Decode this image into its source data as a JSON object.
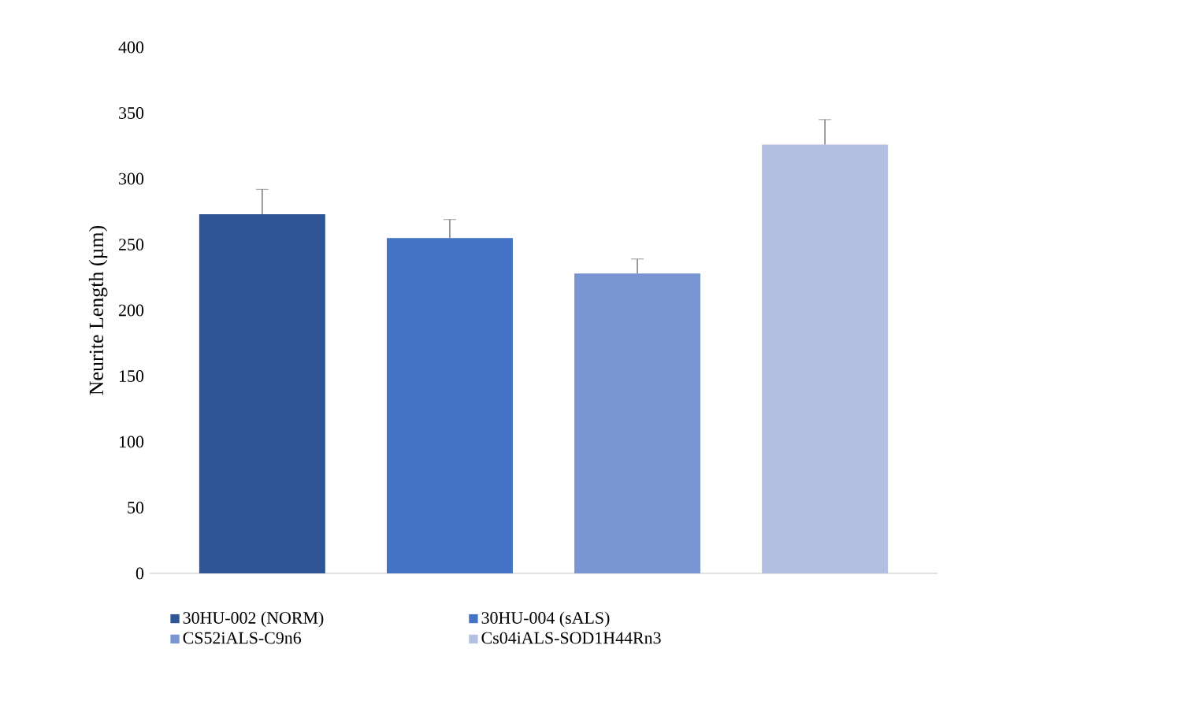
{
  "chart_data": {
    "type": "bar",
    "ylabel": "Neurite Length (µm)",
    "categories": [
      null,
      null,
      null,
      null
    ],
    "series": [
      {
        "name": "30HU-002 (NORM)",
        "color": "#2f5597",
        "values": [
          273,
          null,
          null,
          null
        ],
        "errors": [
          [
            273,
            292
          ],
          null,
          null,
          null
        ]
      },
      {
        "name": "30HU-004 (sALS)",
        "color": "#4472c4",
        "values": [
          null,
          255,
          null,
          null
        ],
        "errors": [
          null,
          [
            255,
            269
          ],
          null,
          null
        ]
      },
      {
        "name": "CS52iALS-C9n6",
        "color": "#7a96d2",
        "values": [
          null,
          null,
          228,
          null
        ],
        "errors": [
          null,
          null,
          [
            228,
            239
          ],
          null
        ]
      },
      {
        "name": "Cs04iALS-SOD1H44Rn3",
        "color": "#b4c0e2",
        "values": [
          null,
          null,
          null,
          326
        ],
        "errors": [
          null,
          null,
          null,
          [
            326,
            345
          ]
        ]
      }
    ],
    "ylim": [
      0,
      400
    ],
    "yticks": [
      0,
      50,
      100,
      150,
      200,
      250,
      300,
      350,
      400
    ],
    "legend": "bottom",
    "grid": false
  }
}
